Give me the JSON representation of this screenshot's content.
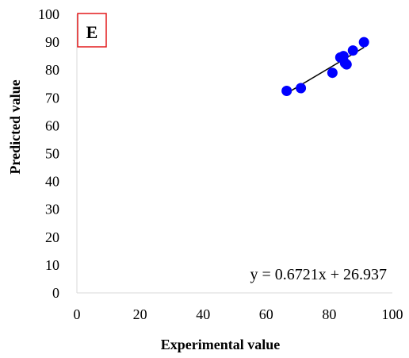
{
  "chart_data": {
    "type": "scatter",
    "panel_label": "E",
    "xlabel": "Experimental value",
    "ylabel": "Predicted value",
    "xlim": [
      0,
      100
    ],
    "ylim": [
      0,
      100
    ],
    "x_ticks": [
      0,
      20,
      40,
      60,
      80,
      100
    ],
    "y_ticks": [
      0,
      10,
      20,
      30,
      40,
      50,
      60,
      70,
      80,
      90,
      100
    ],
    "grid": false,
    "marker_color": "#0000ff",
    "frame_color": "#e31a1c",
    "points": [
      {
        "x": 66.5,
        "y": 72.5
      },
      {
        "x": 71.0,
        "y": 73.5
      },
      {
        "x": 81.0,
        "y": 79.0
      },
      {
        "x": 83.5,
        "y": 84.5
      },
      {
        "x": 84.5,
        "y": 85.0
      },
      {
        "x": 85.0,
        "y": 82.5
      },
      {
        "x": 85.5,
        "y": 82.0
      },
      {
        "x": 87.5,
        "y": 87.0
      },
      {
        "x": 91.0,
        "y": 90.0
      }
    ],
    "trendline": {
      "slope": 0.6721,
      "intercept": 26.937,
      "x_range": [
        66.5,
        91.0
      ],
      "equation": "y = 0.6721x + 26.937"
    }
  }
}
